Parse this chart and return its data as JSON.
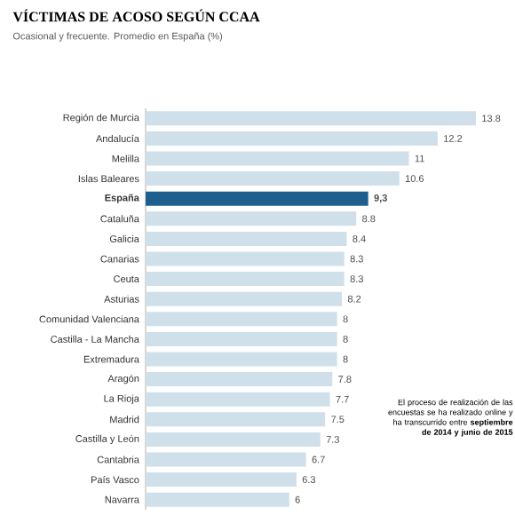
{
  "chart_data": {
    "type": "bar",
    "orientation": "horizontal",
    "title": "VÍCTIMAS DE ACOSO SEGÚN CCAA",
    "subtitle": "Ocasional y frecuente. Promedio en España (%)",
    "categories": [
      "Región de Murcia",
      "Andalucía",
      "Melilla",
      "Islas Baleares",
      "**España**",
      "Cataluña",
      "Galicia",
      "Canarias",
      "Ceuta",
      "Asturias",
      "Comunidad Valenciana",
      "Castilla - La Mancha",
      "Extremadura",
      "Aragón",
      "La Rioja",
      "Madrid",
      "Castilla y León",
      "Cantabria",
      "País Vasco",
      "Navarra"
    ],
    "values": [
      13.8,
      12.2,
      11,
      10.6,
      9.3,
      8.8,
      8.4,
      8.3,
      8.3,
      8.2,
      8,
      8,
      8,
      7.8,
      7.7,
      7.5,
      7.3,
      6.7,
      6.3,
      6
    ],
    "value_labels": [
      "13.8",
      "12.2",
      "11",
      "10.6",
      "**9,3**",
      "8.8",
      "8.4",
      "8.3",
      "8.3",
      "8.2",
      "8",
      "8",
      "8",
      "7.8",
      "7.7",
      "7.5",
      "7.3",
      "6.7",
      "6.3",
      "6"
    ],
    "colors": [
      "#cfe0ea",
      "#cfe0ea",
      "#cfe0ea",
      "#cfe0ea",
      "#1f5f8f",
      "#cfe0ea",
      "#cfe0ea",
      "#cfe0ea",
      "#cfe0ea",
      "#cfe0ea",
      "#cfe0ea",
      "#cfe0ea",
      "#cfe0ea",
      "#cfe0ea",
      "#cfe0ea",
      "#cfe0ea",
      "#cfe0ea",
      "#cfe0ea",
      "#cfe0ea",
      "#cfe0ea"
    ],
    "tick_labels": "y",
    "annotations": [
      "El proceso de realización de las encuestas se ha realizado online y ha transcurrido entre **septiembre de 2014 y junio de 2015**"
    ]
  }
}
